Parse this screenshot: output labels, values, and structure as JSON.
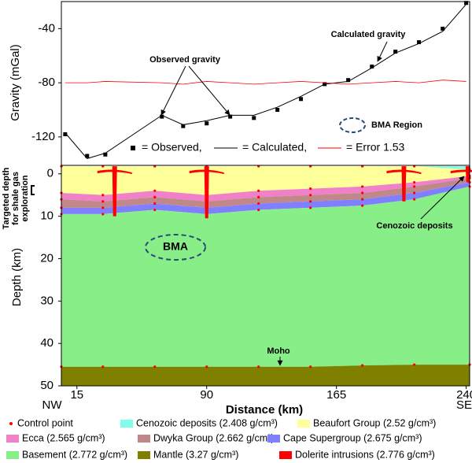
{
  "chart_data": [
    {
      "type": "line",
      "ylabel": "Gravity (mGal)",
      "xlim": [
        6,
        242
      ],
      "ylim": [
        -141,
        -20
      ],
      "yticks": [
        -40,
        -80,
        -120
      ],
      "x": [
        8.2,
        20.9,
        31.4,
        64.1,
        76.4,
        90,
        103.6,
        117.3,
        130.9,
        144.5,
        158.2,
        171.8,
        185.5,
        199.1,
        212.7,
        226.4,
        240
      ],
      "series": [
        {
          "name": "= Observed,",
          "color": "#000000",
          "marker": "square",
          "values": [
            -118,
            -134,
            -133,
            -105,
            -112,
            -110,
            -105,
            -106,
            -100,
            -92,
            -81,
            -78,
            -68,
            -57,
            -50,
            -40,
            -21
          ]
        },
        {
          "name": "= Calculated,",
          "color": "#000000",
          "values": [
            -117,
            -136,
            -132,
            -104,
            -111,
            -108,
            -104,
            -104,
            -98,
            -90,
            -81,
            -79,
            -69,
            -58,
            -51,
            -42,
            -22
          ]
        },
        {
          "name": "= Error 1.53",
          "color": "#ff0000",
          "values": [
            -80,
            -80,
            -79,
            -80,
            -81,
            -79,
            -80,
            -81,
            -80,
            -79,
            -80,
            -81,
            -80,
            -79,
            -80,
            -78,
            -79
          ]
        }
      ],
      "annotations": [
        "Observed gravity",
        "Calculated gravity",
        "BMA Region"
      ]
    },
    {
      "type": "area",
      "xlabel": "Distance (km)",
      "ylabel": "Depth (km)",
      "side_label": [
        "Targeted depth",
        "for shale gas",
        "exploration"
      ],
      "ends": [
        "NW",
        "SE"
      ],
      "xlim": [
        6,
        242
      ],
      "xticks": [
        15,
        90,
        165,
        240
      ],
      "ylim": [
        -2,
        50
      ],
      "yticks": [
        0,
        10,
        20,
        30,
        40,
        50
      ],
      "x": [
        6,
        30,
        60,
        90,
        120,
        150,
        180,
        210,
        242
      ],
      "series": [
        {
          "name": "Cenozoic deposits (2.408 g/cm³)",
          "color": "#80ffe8",
          "values": [
            -1.8,
            -1.8,
            -1.8,
            -1.8,
            -1.8,
            -1.8,
            -1.8,
            -1.8,
            -1.8
          ]
        },
        {
          "name": "Beaufort Group (2.52 g/cm³)",
          "color": "#ffff99",
          "values": [
            -1.8,
            -1.8,
            -1.8,
            -1.8,
            -1.8,
            -1.8,
            -1.8,
            -1.8,
            -1.0
          ]
        },
        {
          "name": "Ecca (2.565 g/cm³)",
          "color": "#f080c8",
          "values": [
            4.5,
            5,
            4,
            5,
            4,
            3.5,
            3,
            2,
            0.5
          ]
        },
        {
          "name": "Dwyka Group (2.662 g/cm³)",
          "color": "#c08888",
          "values": [
            6,
            6.5,
            5.5,
            6.5,
            5.5,
            5,
            4.5,
            3,
            1
          ]
        },
        {
          "name": "Cape Supergroup (2.675 g/cm³)",
          "color": "#8080ff",
          "values": [
            8,
            8,
            7,
            8,
            7,
            6.5,
            6,
            4.5,
            2
          ]
        },
        {
          "name": "Basement (2.772 g/cm³)",
          "color": "#88ee88",
          "values": [
            9.5,
            9.5,
            8.5,
            9.5,
            8.5,
            8,
            7.5,
            6,
            3
          ]
        },
        {
          "name": "Mantle (3.27 g/cm³)",
          "color": "#808000",
          "values": [
            45.5,
            45.5,
            45.5,
            45.5,
            45.5,
            45.5,
            45.2,
            45,
            45
          ]
        }
      ],
      "control_point": {
        "name": "Control point",
        "color": "#ff0000"
      },
      "intrusions": {
        "name": "Dolerite intrusions (2.776 g/cm³)",
        "color": "#ff0000",
        "x": [
          36.8,
          90,
          204,
          241
        ],
        "depth": [
          10,
          10.5,
          6.5,
          2
        ]
      },
      "annotations": [
        "BMA",
        "Moho",
        "Cenozoic deposits"
      ]
    }
  ]
}
